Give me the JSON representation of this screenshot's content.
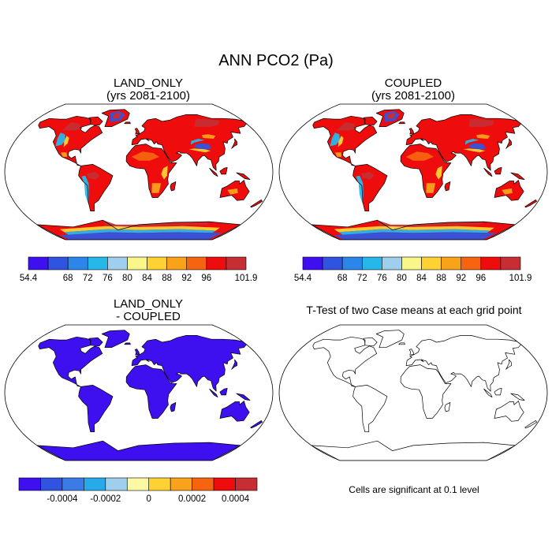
{
  "figure": {
    "title": "ANN PCO2 (Pa)"
  },
  "panels": [
    {
      "id": "land_only",
      "title": "LAND_ONLY",
      "subtitle": "(yrs 2081-2100)"
    },
    {
      "id": "coupled",
      "title": "COUPLED",
      "subtitle": "(yrs 2081-2100)"
    },
    {
      "id": "difference",
      "title": "LAND_ONLY",
      "subtitle": "- COUPLED"
    },
    {
      "id": "ttest",
      "title": "T-Test of two Case means at each grid point",
      "note": "Cells are significant at 0.1 level"
    }
  ],
  "colorbars": {
    "absolute": {
      "colors": [
        "#3f10ef",
        "#3054e0",
        "#2a86e8",
        "#27b8ea",
        "#9fcfec",
        "#fbf68a",
        "#fdd232",
        "#f9a21a",
        "#f66410",
        "#ee0c0c",
        "#c62e33"
      ],
      "tick_labels": [
        "54.4",
        "68",
        "72",
        "76",
        "80",
        "84",
        "88",
        "92",
        "96",
        "101.9"
      ],
      "tick_positions": [
        0,
        2,
        3,
        4,
        5,
        6,
        7,
        8,
        9,
        11
      ]
    },
    "difference": {
      "colors": [
        "#3f10ef",
        "#3054e0",
        "#3a7be8",
        "#27aaea",
        "#9fcfec",
        "#fdf8a6",
        "#fdd232",
        "#f9a21a",
        "#f66410",
        "#ee0c0c",
        "#c62e33"
      ],
      "tick_labels": [
        "-0.0004",
        "-0.0002",
        "0",
        "0.0002",
        "0.0004"
      ],
      "tick_positions": [
        2,
        4,
        6,
        8,
        10
      ]
    }
  },
  "map_colors": {
    "ocean": "#ffffff",
    "coast": "#000000",
    "land_main": "#ee0c0c",
    "land_hot": "#f66410",
    "land_warm": "#f9a21a",
    "land_mid": "#fdd232",
    "land_cool": "#27b8ea",
    "land_cold": "#3054e0",
    "land_dark": "#c62e33",
    "diff_land": "#3f10ef"
  }
}
